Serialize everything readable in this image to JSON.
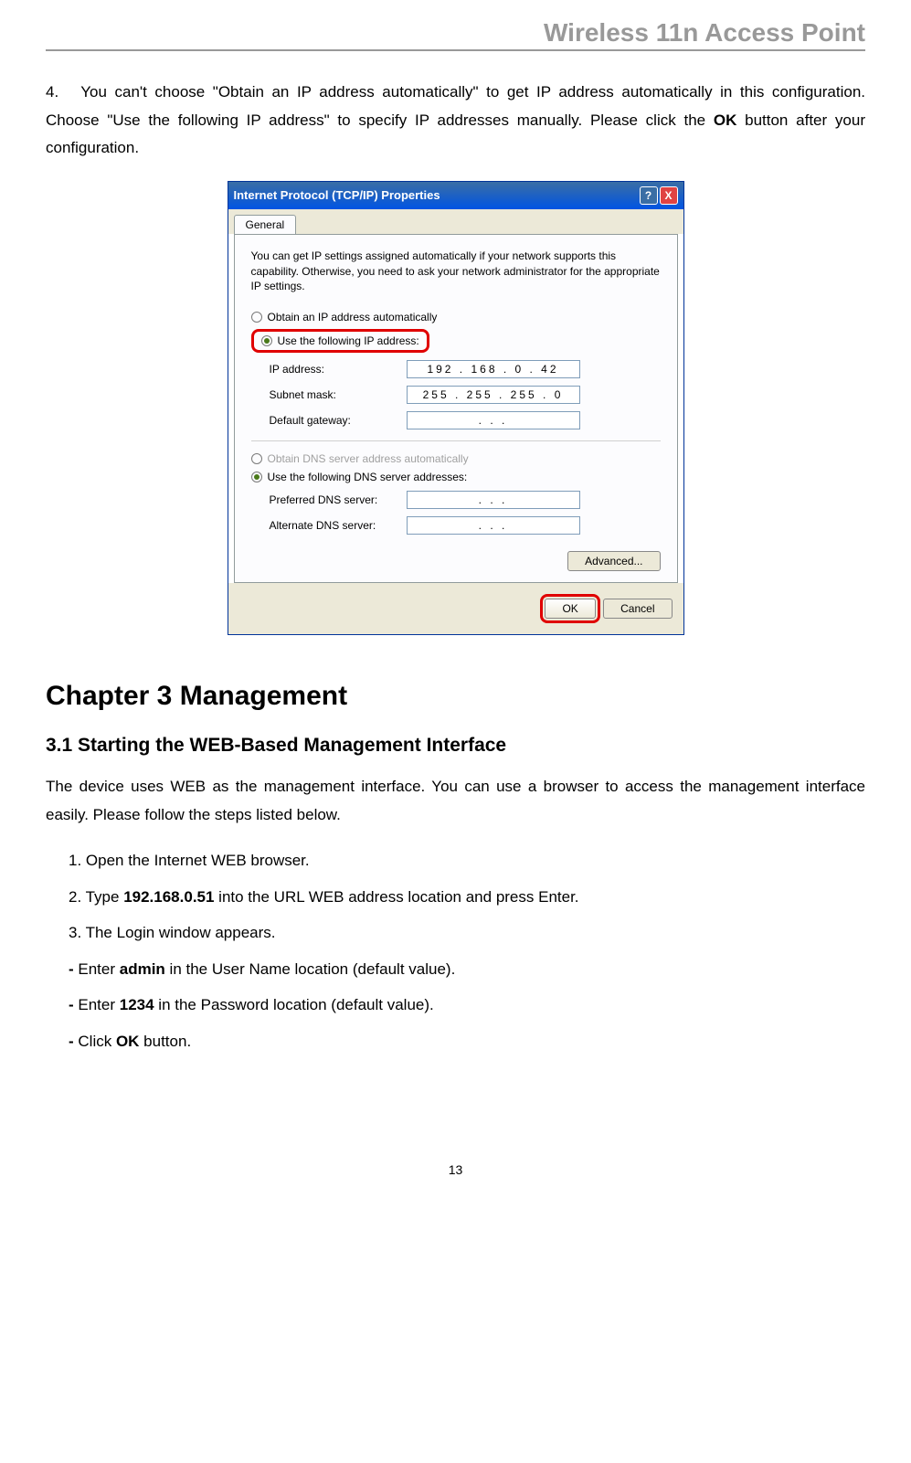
{
  "header": {
    "title": "Wireless 11n Access Point"
  },
  "step4": {
    "number": "4.",
    "text_before": "You can't choose \"Obtain an IP address automatically\" to get IP address automatically in this configuration. Choose \"Use the following IP address\" to specify IP addresses manually. Please click the ",
    "bold": "OK",
    "text_after": " button after your configuration."
  },
  "dialog": {
    "title": "Internet Protocol (TCP/IP) Properties",
    "help_icon": "?",
    "close_icon": "X",
    "tab": "General",
    "info": "You can get IP settings assigned automatically if your network supports this capability. Otherwise, you need to ask your network administrator for the appropriate IP settings.",
    "radio_obtain_ip": "Obtain an IP address automatically",
    "radio_use_ip": "Use the following IP address:",
    "ip_address_label": "IP address:",
    "ip_address_value": "192 . 168 .  0  . 42",
    "subnet_label": "Subnet mask:",
    "subnet_value": "255 . 255 . 255 .  0",
    "gateway_label": "Default gateway:",
    "gateway_value": ".       .       .",
    "radio_obtain_dns": "Obtain DNS server address automatically",
    "radio_use_dns": "Use the following DNS server addresses:",
    "pref_dns_label": "Preferred DNS server:",
    "pref_dns_value": ".       .       .",
    "alt_dns_label": "Alternate DNS server:",
    "alt_dns_value": ".       .       .",
    "advanced_btn": "Advanced...",
    "ok_btn": "OK",
    "cancel_btn": "Cancel"
  },
  "chapter": {
    "title": "Chapter 3    Management"
  },
  "section": {
    "title": "3.1    Starting the WEB-Based Management Interface",
    "intro": "The device uses WEB as the management interface. You can use a browser to access the management interface easily. Please follow the steps listed below."
  },
  "steps": {
    "s1": "1. Open the Internet WEB browser.",
    "s2_before": "2. Type ",
    "s2_bold": "192.168.0.51",
    "s2_after": " into the URL WEB address location and press Enter.",
    "s3": "3. The Login window appears.",
    "s4_before": "- Enter ",
    "s4_bold": "admin",
    "s4_after": " in the User Name location (default value).",
    "s5_before": "- Enter ",
    "s5_bold": "1234",
    "s5_after": " in the Password location (default value).",
    "s6_before": "- Click ",
    "s6_bold": "OK",
    "s6_after": " button."
  },
  "page_number": "13"
}
